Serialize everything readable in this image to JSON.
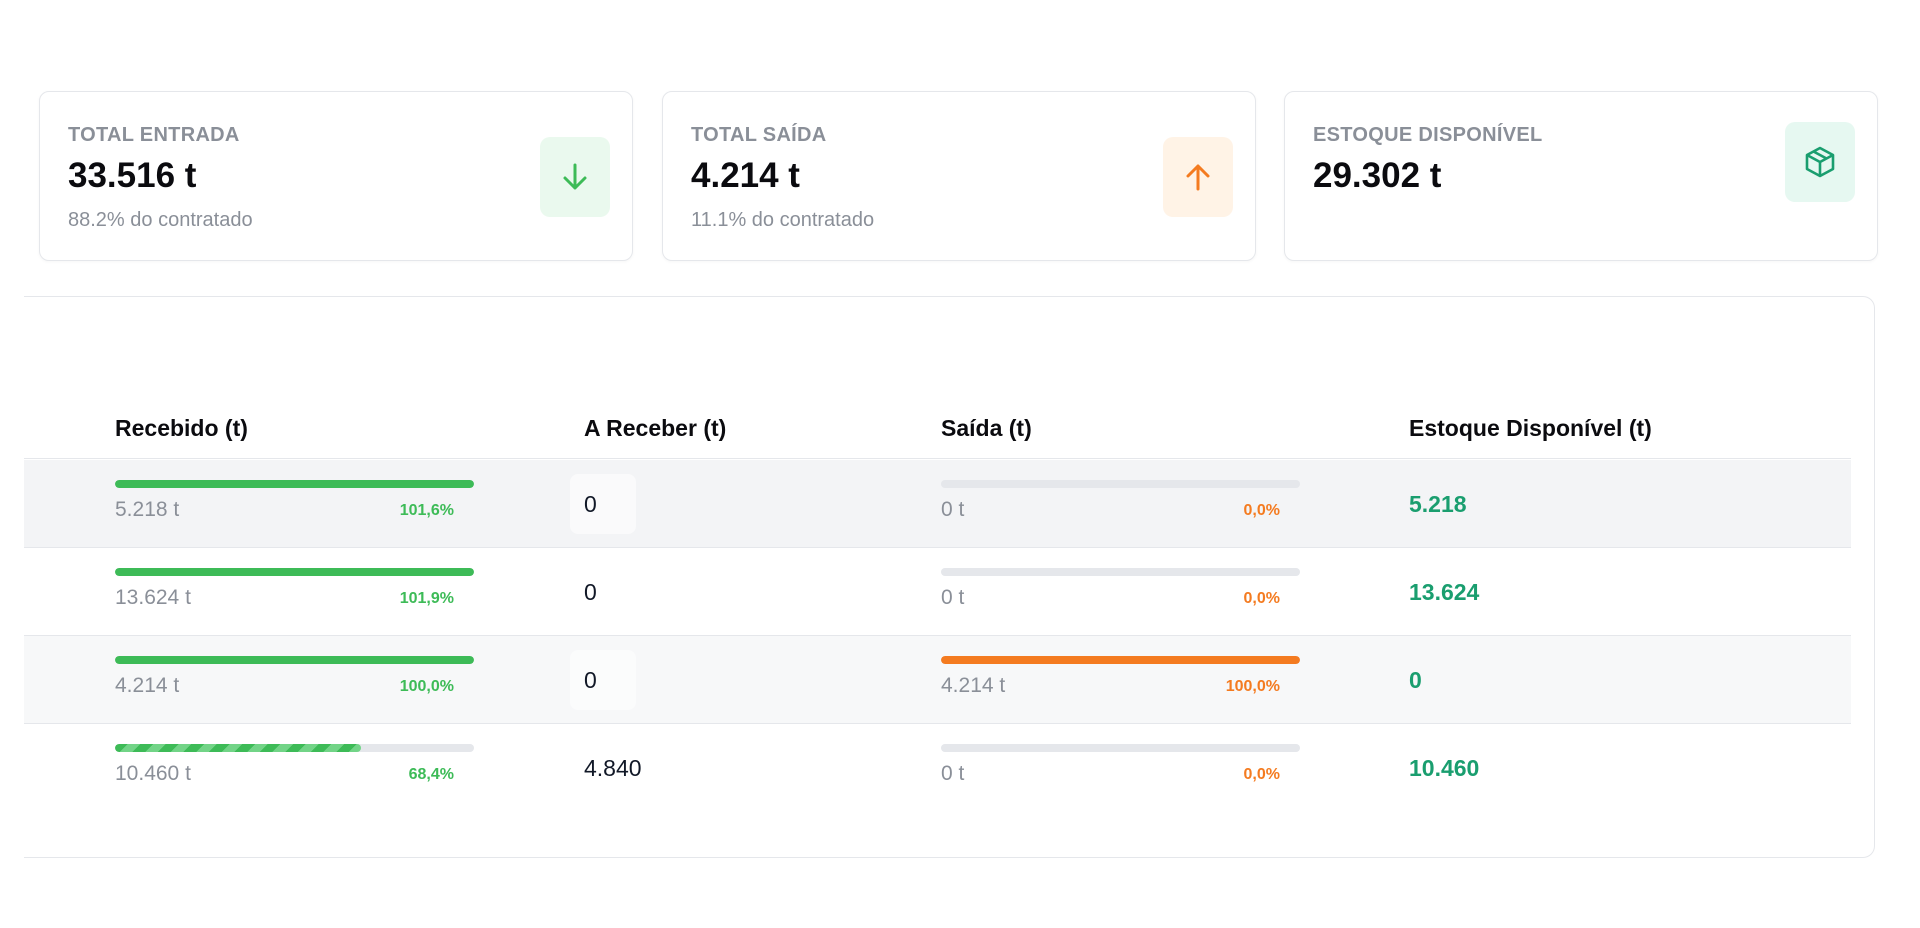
{
  "summary_cards": [
    {
      "label": "TOTAL ENTRADA",
      "value": "33.516 t",
      "sub": "88.2% do contratado",
      "icon": "arrow-down-icon",
      "accent": "#3dbb57",
      "icon_bg": "#eaf9ee"
    },
    {
      "label": "TOTAL SAÍDA",
      "value": "4.214 t",
      "sub": "11.1% do contratado",
      "icon": "arrow-up-icon",
      "accent": "#f47b20",
      "icon_bg": "#fff3e6"
    },
    {
      "label": "ESTOQUE DISPONÍVEL",
      "value": "29.302 t",
      "sub": "",
      "icon": "box-icon",
      "accent": "#1a9e6f",
      "icon_bg": "#e6f8f1"
    }
  ],
  "table": {
    "headers": {
      "recebido": "Recebido (t)",
      "a_receber": "A Receber (t)",
      "saida": "Saída (t)",
      "estoque": "Estoque Disponível (t)"
    },
    "rows": [
      {
        "recebido": "5.218 t",
        "recebido_pct": "101,6%",
        "recebido_fill": 1.0,
        "a_receber": "0",
        "saida": "0 t",
        "saida_pct": "0,0%",
        "saida_fill": 0.0,
        "estoque": "5.218"
      },
      {
        "recebido": "13.624 t",
        "recebido_pct": "101,9%",
        "recebido_fill": 1.0,
        "a_receber": "0",
        "saida": "0 t",
        "saida_pct": "0,0%",
        "saida_fill": 0.0,
        "estoque": "13.624"
      },
      {
        "recebido": "4.214 t",
        "recebido_pct": "100,0%",
        "recebido_fill": 1.0,
        "a_receber": "0",
        "saida": "4.214 t",
        "saida_pct": "100,0%",
        "saida_fill": 1.0,
        "estoque": "0"
      },
      {
        "recebido": "10.460 t",
        "recebido_pct": "68,4%",
        "recebido_fill": 0.684,
        "a_receber": "4.840",
        "saida": "0 t",
        "saida_pct": "0,0%",
        "saida_fill": 0.0,
        "estoque": "10.460"
      }
    ]
  },
  "colors": {
    "green": "#3dbb57",
    "orange": "#f47b20",
    "teal": "#1a9e6f"
  }
}
